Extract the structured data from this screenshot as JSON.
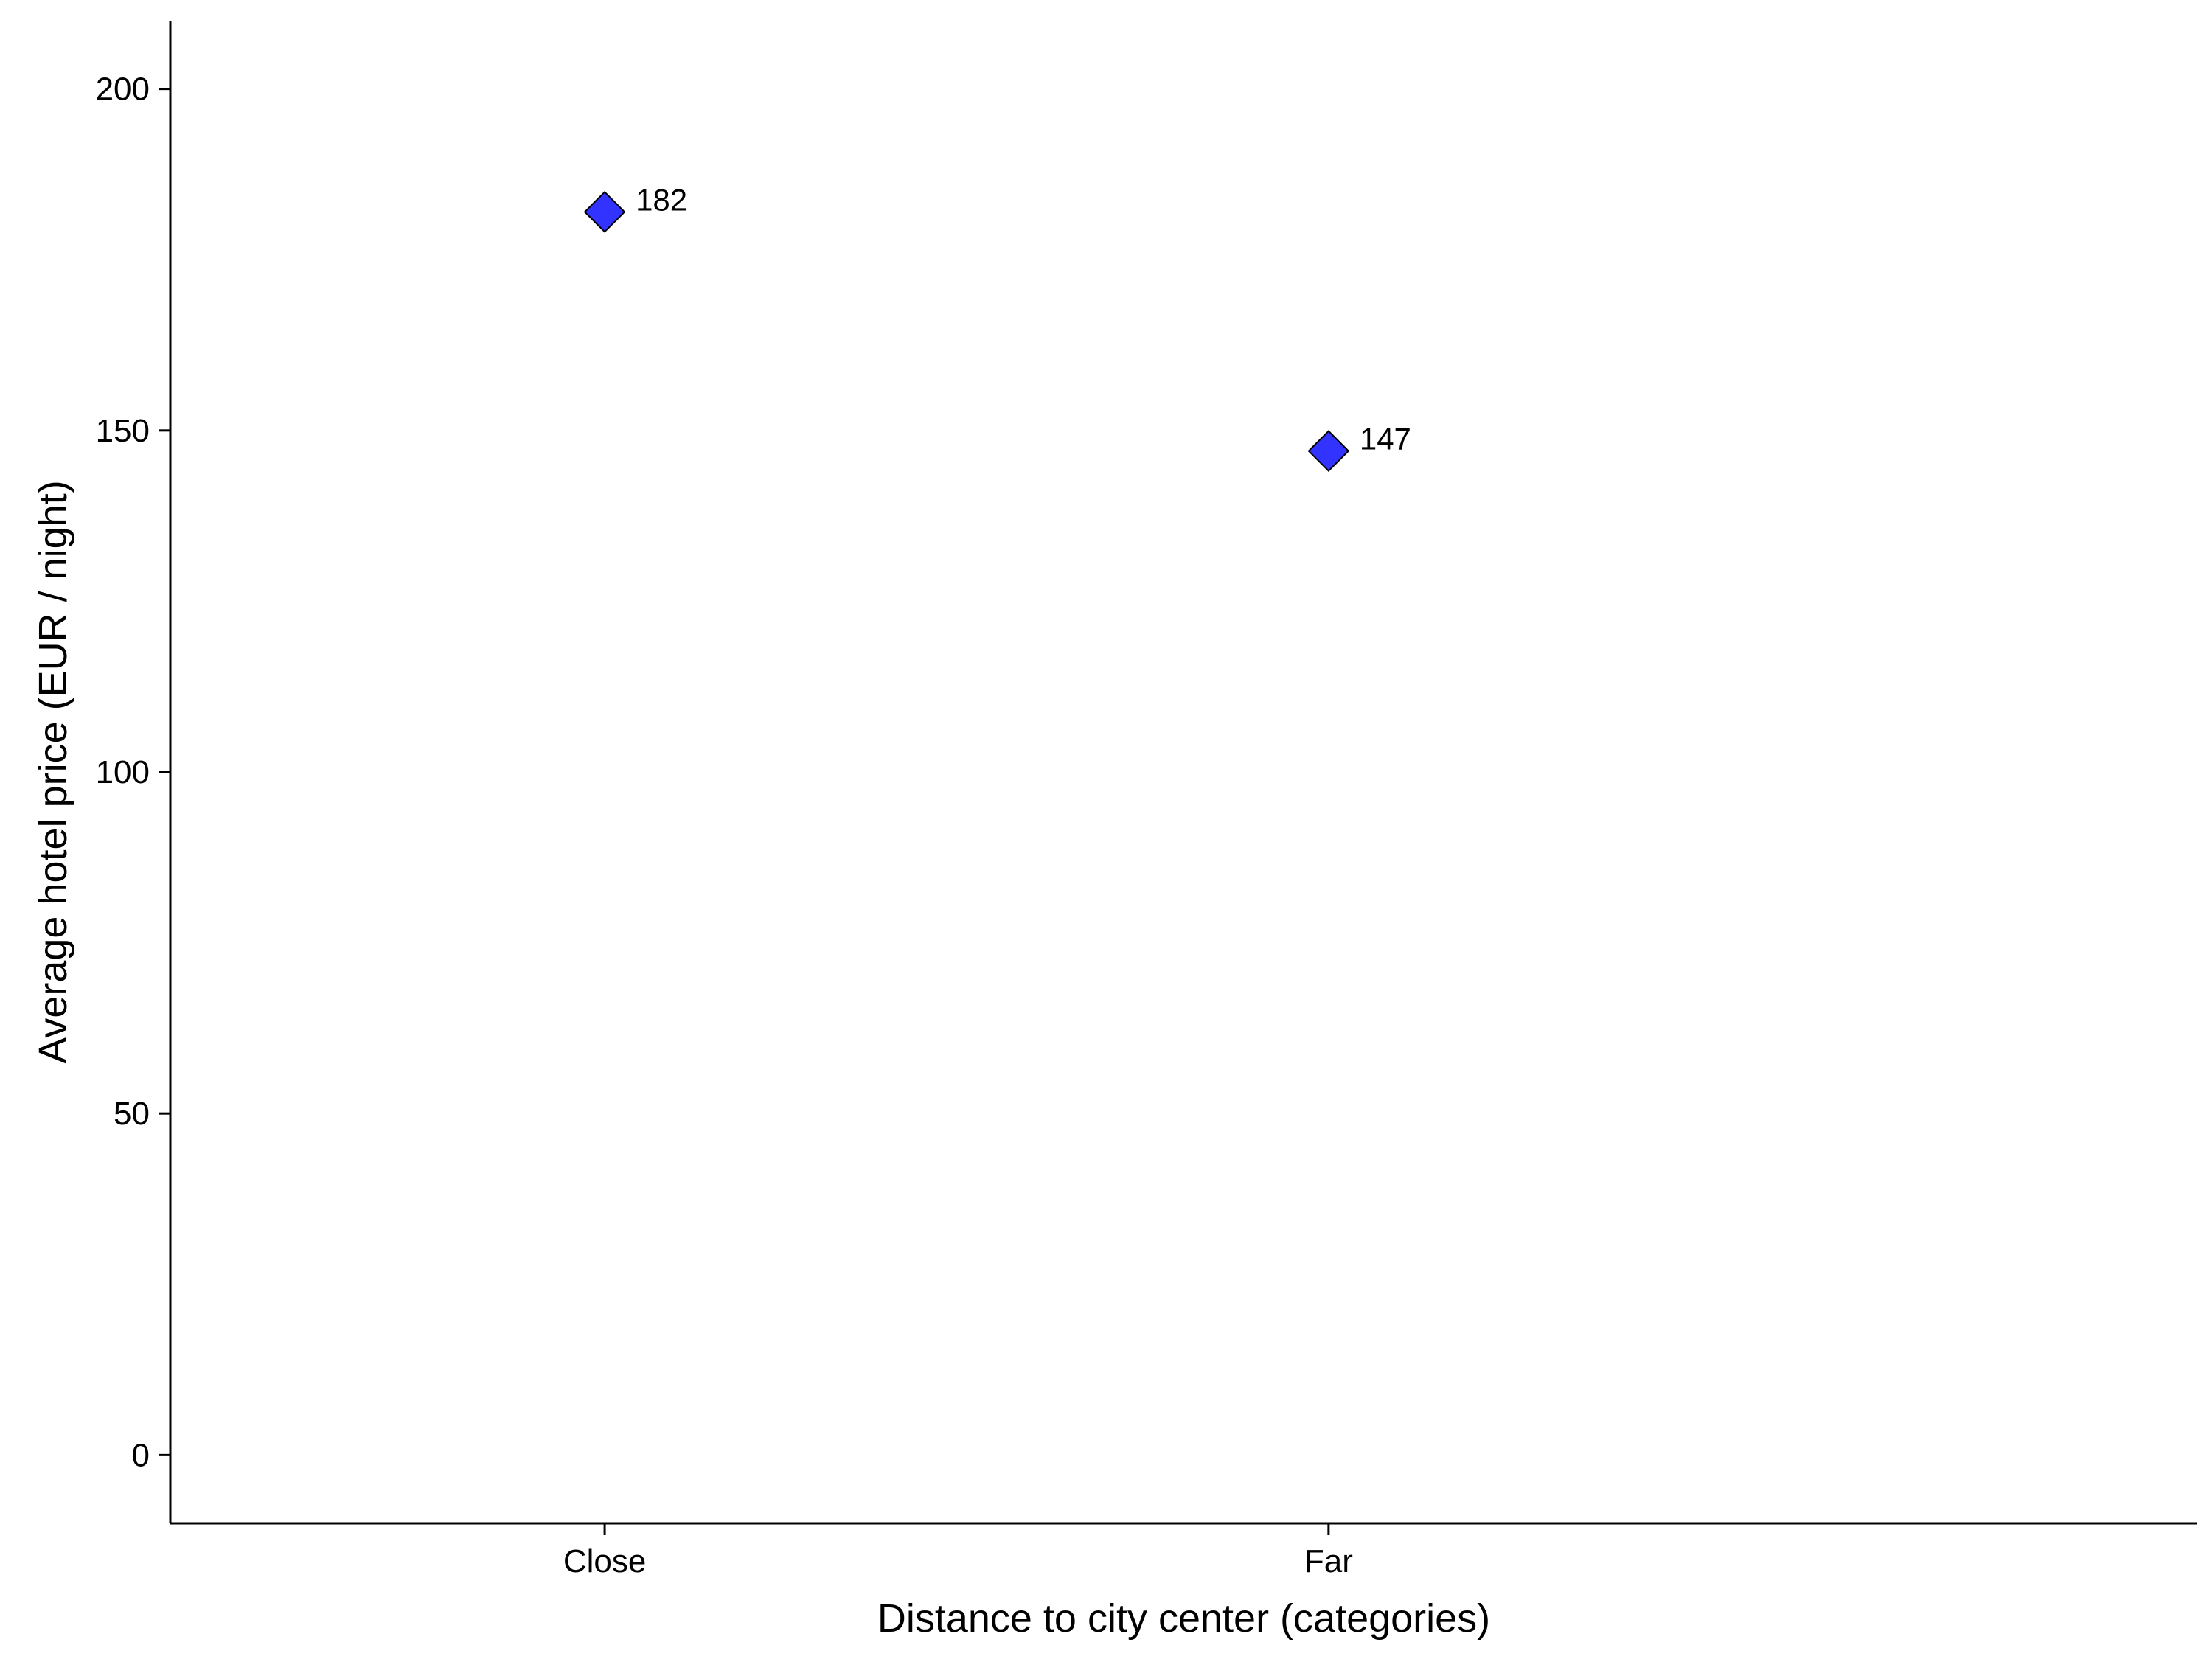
{
  "chart_data": {
    "type": "scatter",
    "categories": [
      "Close",
      "Far"
    ],
    "values": [
      182,
      147
    ],
    "data_labels": [
      "182",
      "147"
    ],
    "xlabel": "Distance to city center (categories)",
    "ylabel": "Average hotel price (EUR / night)",
    "ylim": [
      -10,
      210
    ],
    "yticks": [
      0,
      50,
      100,
      150,
      200
    ],
    "ytick_labels": [
      "0",
      "50",
      "100",
      "150",
      "200"
    ],
    "marker": "diamond",
    "point_color": "#3333ff",
    "grid": false,
    "legend": "none"
  }
}
